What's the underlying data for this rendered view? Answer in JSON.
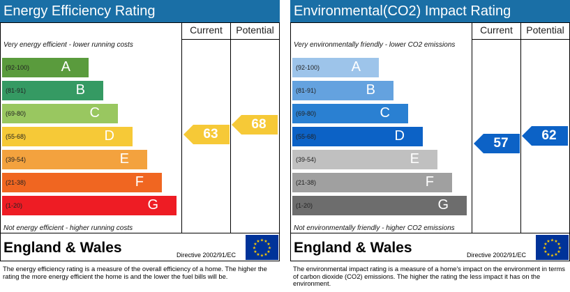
{
  "energy": {
    "title": "Energy Efficiency Rating",
    "col_current": "Current",
    "col_potential": "Potential",
    "top_note": "Very energy efficient - lower running costs",
    "bottom_note": "Not energy efficient - higher running costs",
    "bands": [
      {
        "range": "(92-100)",
        "letter": "A",
        "color": "#5a9b3d"
      },
      {
        "range": "(81-91)",
        "letter": "B",
        "color": "#359a63"
      },
      {
        "range": "(69-80)",
        "letter": "C",
        "color": "#99c760"
      },
      {
        "range": "(55-68)",
        "letter": "D",
        "color": "#f6c937"
      },
      {
        "range": "(39-54)",
        "letter": "E",
        "color": "#f3a23e"
      },
      {
        "range": "(21-38)",
        "letter": "F",
        "color": "#f06621"
      },
      {
        "range": "(1-20)",
        "letter": "G",
        "color": "#ee1c24"
      }
    ],
    "current": {
      "value": "63",
      "band": "D",
      "color": "#f6c937"
    },
    "potential": {
      "value": "68",
      "band": "D",
      "color": "#f6c937"
    },
    "footer_title": "England & Wales",
    "directive": "Directive 2002/91/EC",
    "description": "The energy efficiency rating is a measure of the overall efficiency of a home. The higher the rating the more energy efficient the home is and the lower the fuel bills will be."
  },
  "environment": {
    "title": "Environmental(CO2) Impact Rating",
    "col_current": "Current",
    "col_potential": "Potential",
    "top_note": "Very environmentally friendly - lower CO2 emissions",
    "bottom_note": "Not environmentally friendly - higher CO2 emissions",
    "bands": [
      {
        "range": "(92-100)",
        "letter": "A",
        "color": "#9dc4ea"
      },
      {
        "range": "(81-91)",
        "letter": "B",
        "color": "#64a2df"
      },
      {
        "range": "(69-80)",
        "letter": "C",
        "color": "#2a80d2"
      },
      {
        "range": "(55-68)",
        "letter": "D",
        "color": "#0c62c6"
      },
      {
        "range": "(39-54)",
        "letter": "E",
        "color": "#c0c0c0"
      },
      {
        "range": "(21-38)",
        "letter": "F",
        "color": "#a0a0a0"
      },
      {
        "range": "(1-20)",
        "letter": "G",
        "color": "#6d6d6d"
      }
    ],
    "current": {
      "value": "57",
      "band": "D",
      "color": "#0c62c6"
    },
    "potential": {
      "value": "62",
      "band": "D",
      "color": "#0c62c6"
    },
    "footer_title": "England & Wales",
    "directive": "Directive 2002/91/EC",
    "description": "The environmental impact rating is a measure of a home's impact on the environment in terms of carbon dioxide (CO2) emissions. The higher the rating the less impact it has on the environment."
  },
  "icons": {
    "eu_flag": "eu-flag-icon"
  }
}
